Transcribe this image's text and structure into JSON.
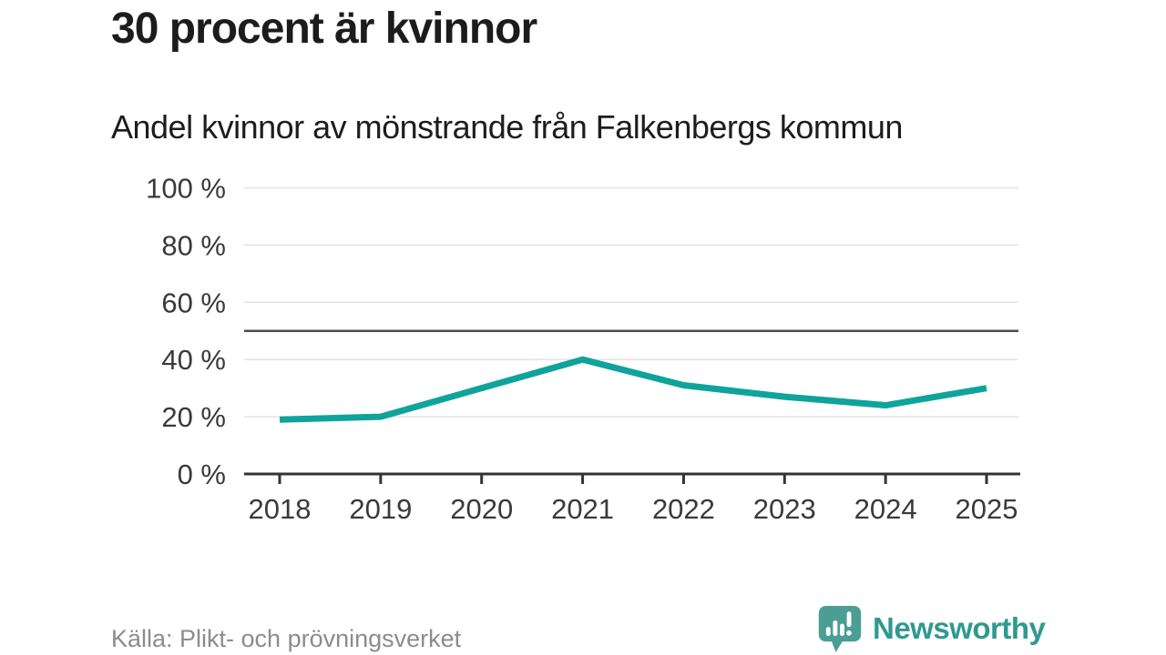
{
  "header": {
    "title": "30 procent är kvinnor",
    "subtitle": "Andel kvinnor av mönstrande från Falkenbergs kommun"
  },
  "chart_data": {
    "type": "line",
    "title": "30 procent är kvinnor",
    "subtitle": "Andel kvinnor av mönstrande från Falkenbergs kommun",
    "x": [
      "2018",
      "2019",
      "2020",
      "2021",
      "2022",
      "2023",
      "2024",
      "2025"
    ],
    "series": [
      {
        "name": "Andel kvinnor",
        "values": [
          19,
          20,
          30,
          40,
          31,
          27,
          24,
          30
        ],
        "color": "#10a39b"
      }
    ],
    "xlabel": "",
    "ylabel": "",
    "ylim": [
      0,
      100
    ],
    "y_ticks": [
      0,
      20,
      40,
      60,
      80,
      100
    ],
    "y_tick_suffix": " %",
    "reference_line": {
      "value": 50,
      "color": "#4d4d4d"
    },
    "grid": "horizontal",
    "gridline_color": "#e3e3e3",
    "axis_color": "#333333",
    "tick_label_color": "#3a3a3a",
    "legend": "none"
  },
  "footer": {
    "source": "Källa: Plikt- och prövningsverket",
    "brand": "Newsworthy",
    "brand_color": "#2f998f",
    "brand_icon": "speech-bubble-bar-chart-exclamation",
    "brand_icon_color": "#4a9e94"
  }
}
